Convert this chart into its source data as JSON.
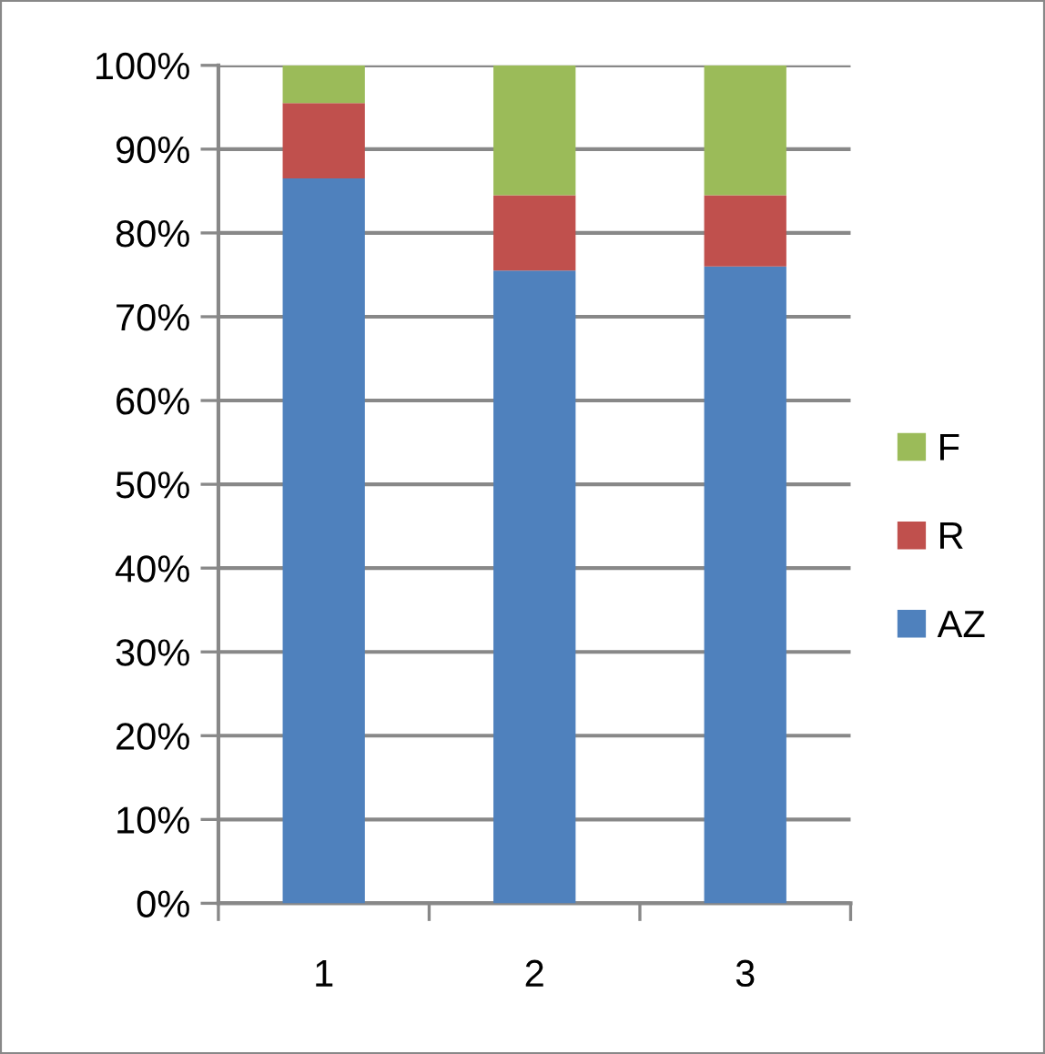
{
  "chart_data": {
    "type": "bar",
    "stacked": true,
    "categories": [
      "1",
      "2",
      "3"
    ],
    "series": [
      {
        "name": "AZ",
        "color": "#4f81bd",
        "values": [
          86.5,
          75.5,
          76
        ]
      },
      {
        "name": "R",
        "color": "#c0504d",
        "values": [
          9,
          9,
          8.5
        ]
      },
      {
        "name": "F",
        "color": "#9bbb59",
        "values": [
          4.5,
          15.5,
          15.5
        ]
      }
    ],
    "ylim": [
      0,
      100
    ],
    "yticks": [
      {
        "value": 0,
        "label": "0%"
      },
      {
        "value": 10,
        "label": "10%"
      },
      {
        "value": 20,
        "label": "20%"
      },
      {
        "value": 30,
        "label": "30%"
      },
      {
        "value": 40,
        "label": "40%"
      },
      {
        "value": 50,
        "label": "50%"
      },
      {
        "value": 60,
        "label": "60%"
      },
      {
        "value": 70,
        "label": "70%"
      },
      {
        "value": 80,
        "label": "80%"
      },
      {
        "value": 90,
        "label": "90%"
      },
      {
        "value": 100,
        "label": "100%"
      }
    ],
    "grid": "y",
    "legend": "right"
  }
}
